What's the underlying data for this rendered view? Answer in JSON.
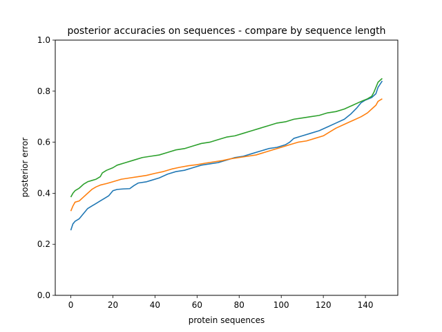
{
  "chart_data": {
    "type": "line",
    "title": "posterior accuracies on sequences - compare by sequence length",
    "xlabel": "protein  sequences",
    "ylabel": "posterior error",
    "xlim": [
      -7.4,
      155.4
    ],
    "ylim": [
      0.0,
      1.0
    ],
    "xticks": [
      0,
      20,
      40,
      60,
      80,
      100,
      120,
      140
    ],
    "yticks": [
      0.0,
      0.2,
      0.4,
      0.6,
      0.8,
      1.0
    ],
    "xtick_labels": [
      "0",
      "20",
      "40",
      "60",
      "80",
      "100",
      "120",
      "140"
    ],
    "ytick_labels": [
      "0.0",
      "0.2",
      "0.4",
      "0.6",
      "0.8",
      "1.0"
    ],
    "grid": false,
    "legend": "none",
    "series": [
      {
        "color": "#1f77b4",
        "points": [
          [
            0,
            0.255
          ],
          [
            1,
            0.28
          ],
          [
            2,
            0.29
          ],
          [
            4,
            0.3
          ],
          [
            6,
            0.32
          ],
          [
            8,
            0.34
          ],
          [
            10,
            0.35
          ],
          [
            12,
            0.36
          ],
          [
            14,
            0.37
          ],
          [
            16,
            0.38
          ],
          [
            18,
            0.39
          ],
          [
            20,
            0.41
          ],
          [
            22,
            0.415
          ],
          [
            25,
            0.417
          ],
          [
            28,
            0.418
          ],
          [
            30,
            0.43
          ],
          [
            32,
            0.44
          ],
          [
            36,
            0.445
          ],
          [
            38,
            0.45
          ],
          [
            42,
            0.46
          ],
          [
            46,
            0.475
          ],
          [
            50,
            0.485
          ],
          [
            54,
            0.49
          ],
          [
            58,
            0.5
          ],
          [
            62,
            0.51
          ],
          [
            66,
            0.515
          ],
          [
            70,
            0.52
          ],
          [
            74,
            0.53
          ],
          [
            78,
            0.54
          ],
          [
            82,
            0.545
          ],
          [
            86,
            0.555
          ],
          [
            90,
            0.565
          ],
          [
            94,
            0.575
          ],
          [
            98,
            0.58
          ],
          [
            102,
            0.59
          ],
          [
            104,
            0.6
          ],
          [
            106,
            0.615
          ],
          [
            110,
            0.625
          ],
          [
            114,
            0.635
          ],
          [
            118,
            0.645
          ],
          [
            122,
            0.66
          ],
          [
            126,
            0.675
          ],
          [
            130,
            0.69
          ],
          [
            133,
            0.71
          ],
          [
            136,
            0.735
          ],
          [
            138,
            0.755
          ],
          [
            140,
            0.765
          ],
          [
            143,
            0.775
          ],
          [
            145,
            0.79
          ],
          [
            146,
            0.815
          ],
          [
            148,
            0.84
          ]
        ]
      },
      {
        "color": "#ff7f0e",
        "points": [
          [
            0,
            0.33
          ],
          [
            1,
            0.35
          ],
          [
            2,
            0.365
          ],
          [
            4,
            0.37
          ],
          [
            6,
            0.385
          ],
          [
            8,
            0.4
          ],
          [
            10,
            0.415
          ],
          [
            12,
            0.425
          ],
          [
            14,
            0.432
          ],
          [
            17,
            0.438
          ],
          [
            20,
            0.445
          ],
          [
            24,
            0.455
          ],
          [
            28,
            0.46
          ],
          [
            32,
            0.465
          ],
          [
            36,
            0.47
          ],
          [
            40,
            0.478
          ],
          [
            44,
            0.485
          ],
          [
            48,
            0.495
          ],
          [
            52,
            0.502
          ],
          [
            56,
            0.508
          ],
          [
            60,
            0.512
          ],
          [
            64,
            0.518
          ],
          [
            68,
            0.523
          ],
          [
            72,
            0.528
          ],
          [
            76,
            0.535
          ],
          [
            80,
            0.54
          ],
          [
            84,
            0.545
          ],
          [
            88,
            0.55
          ],
          [
            92,
            0.56
          ],
          [
            96,
            0.57
          ],
          [
            100,
            0.58
          ],
          [
            104,
            0.59
          ],
          [
            108,
            0.6
          ],
          [
            112,
            0.605
          ],
          [
            116,
            0.615
          ],
          [
            120,
            0.625
          ],
          [
            123,
            0.64
          ],
          [
            126,
            0.655
          ],
          [
            130,
            0.67
          ],
          [
            134,
            0.685
          ],
          [
            138,
            0.7
          ],
          [
            141,
            0.715
          ],
          [
            143,
            0.73
          ],
          [
            145,
            0.745
          ],
          [
            146,
            0.76
          ],
          [
            148,
            0.77
          ]
        ]
      },
      {
        "color": "#2ca02c",
        "points": [
          [
            0,
            0.385
          ],
          [
            1,
            0.4
          ],
          [
            2,
            0.41
          ],
          [
            4,
            0.42
          ],
          [
            6,
            0.435
          ],
          [
            8,
            0.445
          ],
          [
            10,
            0.45
          ],
          [
            12,
            0.455
          ],
          [
            14,
            0.465
          ],
          [
            15,
            0.48
          ],
          [
            17,
            0.49
          ],
          [
            20,
            0.5
          ],
          [
            22,
            0.51
          ],
          [
            26,
            0.52
          ],
          [
            30,
            0.53
          ],
          [
            34,
            0.54
          ],
          [
            38,
            0.545
          ],
          [
            42,
            0.55
          ],
          [
            46,
            0.56
          ],
          [
            50,
            0.57
          ],
          [
            54,
            0.575
          ],
          [
            58,
            0.585
          ],
          [
            62,
            0.595
          ],
          [
            66,
            0.6
          ],
          [
            70,
            0.61
          ],
          [
            74,
            0.62
          ],
          [
            78,
            0.625
          ],
          [
            82,
            0.635
          ],
          [
            86,
            0.645
          ],
          [
            90,
            0.655
          ],
          [
            94,
            0.665
          ],
          [
            98,
            0.675
          ],
          [
            102,
            0.68
          ],
          [
            106,
            0.69
          ],
          [
            110,
            0.695
          ],
          [
            114,
            0.7
          ],
          [
            118,
            0.705
          ],
          [
            122,
            0.715
          ],
          [
            126,
            0.72
          ],
          [
            130,
            0.73
          ],
          [
            134,
            0.745
          ],
          [
            138,
            0.76
          ],
          [
            141,
            0.77
          ],
          [
            143,
            0.78
          ],
          [
            144,
            0.795
          ],
          [
            145,
            0.815
          ],
          [
            146,
            0.835
          ],
          [
            148,
            0.85
          ]
        ]
      }
    ]
  }
}
